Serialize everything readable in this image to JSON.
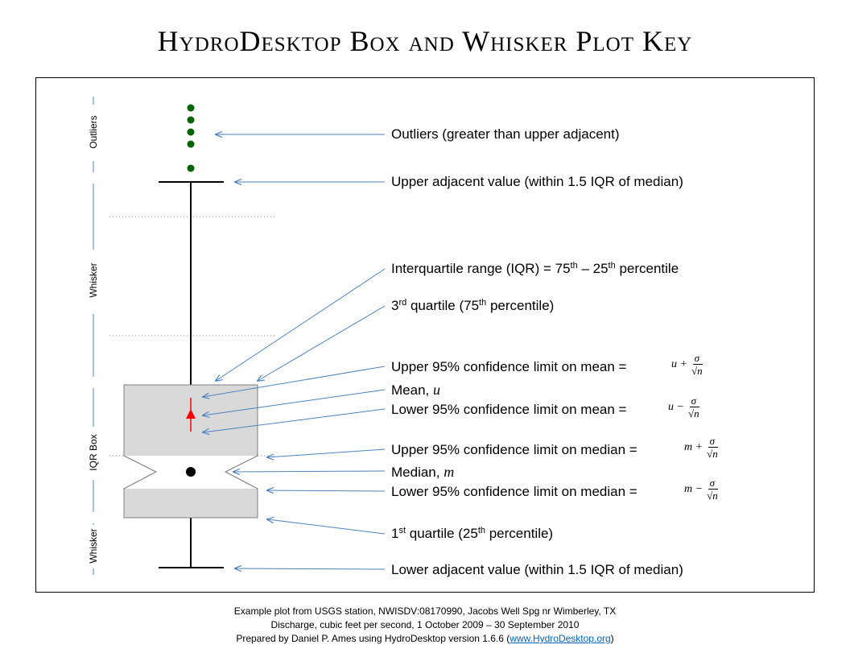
{
  "title": "HydroDesktop Box and Whisker Plot Key",
  "side_labels": {
    "outliers": "Outliers",
    "whisker_top": "Whisker",
    "iqr_box": "IQR Box",
    "whisker_bottom": "Whisker"
  },
  "labels": {
    "outliers": "Outliers (greater than upper adjacent)",
    "upper_adjacent": "Upper adjacent value (within 1.5 IQR of median)",
    "iqr_prefix": "Interquartile range (IQR) = 75",
    "iqr_sup1": "th",
    "iqr_mid": " – 25",
    "iqr_sup2": "th",
    "iqr_suffix": " percentile",
    "q3_prefix": "3",
    "q3_sup": "rd",
    "q3_suffix": " quartile (75",
    "q3_sup2": "th",
    "q3_end": " percentile)",
    "upper_ci_mean": "Upper 95% confidence limit on mean =",
    "mean_prefix": "Mean, ",
    "mean_symbol": "u",
    "lower_ci_mean": "Lower 95% confidence limit on mean =",
    "upper_ci_median": "Upper 95% confidence limit on median =",
    "median_prefix": "Median, ",
    "median_symbol": "m",
    "lower_ci_median": "Lower 95% confidence limit on median =",
    "q1_prefix": "1",
    "q1_sup": "st",
    "q1_suffix": " quartile (25",
    "q1_sup2": "th",
    "q1_end": " percentile)",
    "lower_adjacent": "Lower adjacent value (within 1.5 IQR of median)"
  },
  "formulas": {
    "upper_mean": {
      "base": "u +",
      "num": "σ",
      "den": "n"
    },
    "lower_mean": {
      "base": "u −",
      "num": "σ",
      "den": "n"
    },
    "upper_median": {
      "base": "m +",
      "num": "σ",
      "den": "n"
    },
    "lower_median": {
      "base": "m −",
      "num": "σ",
      "den": "n"
    }
  },
  "footer": {
    "line1": "Example plot from USGS station, NWISDV:08170990,  Jacobs Well Spg nr Wimberley, TX",
    "line2": "Discharge, cubic feet per second, 1 October 2009  – 30 September 2010",
    "line3_prefix": "Prepared by Daniel P. Ames using HydroDesktop version 1.6.6 (",
    "link": "www.HydroDesktop.org",
    "line3_suffix": ")"
  },
  "colors": {
    "box_fill": "#d9d9d9",
    "box_stroke": "#7f7f7f",
    "outlier": "#006400",
    "mean_marker": "#ff0000",
    "arrow": "#4f81bd",
    "side_line": "#4f81bd"
  }
}
